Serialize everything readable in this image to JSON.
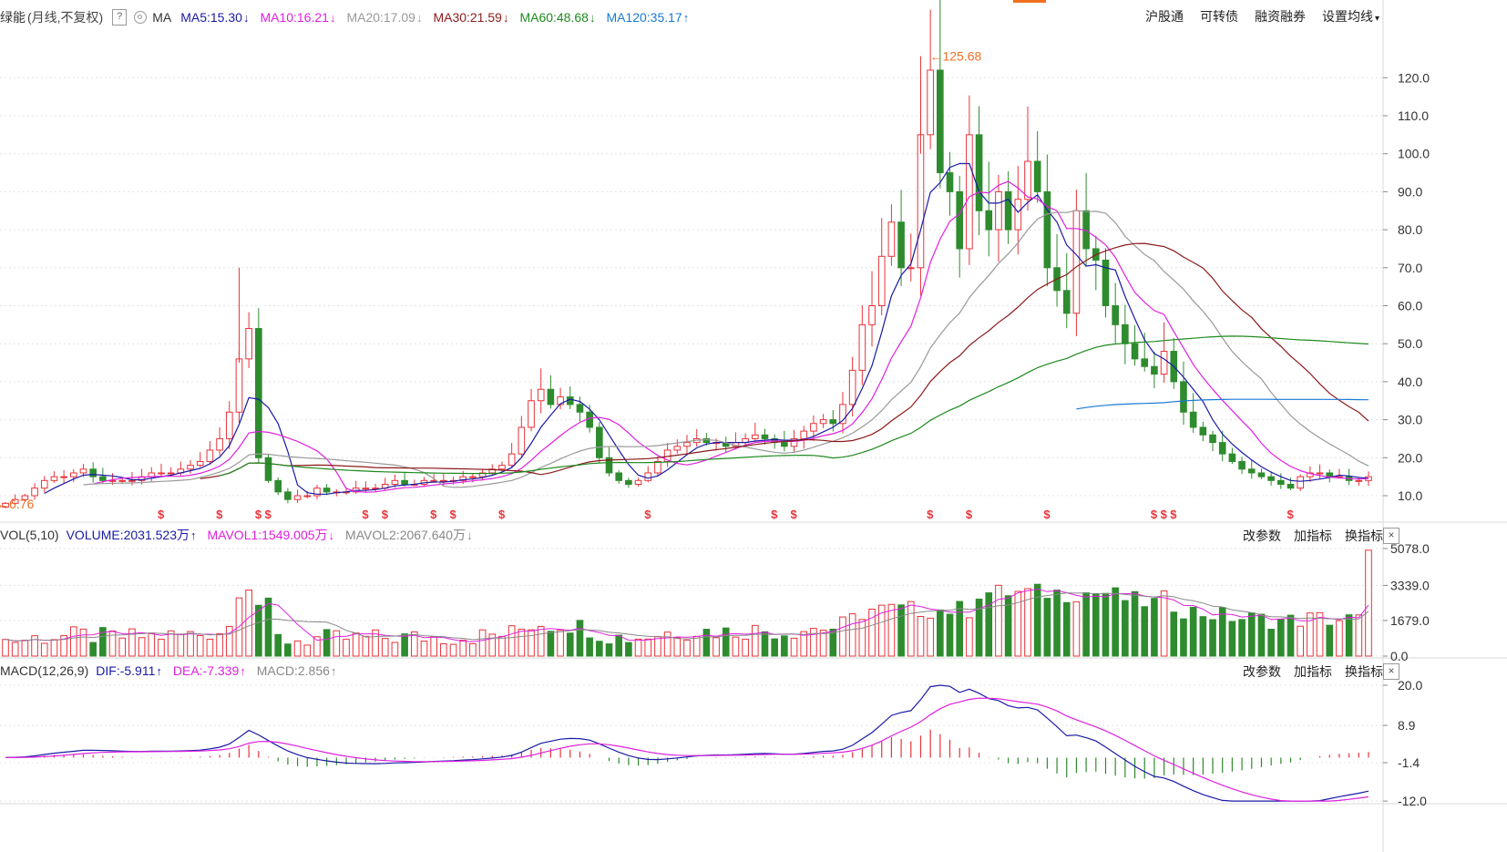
{
  "header": {
    "name_partial": "绿能",
    "mode": "(月线,不复权)",
    "help": "?",
    "ma_label": "MA",
    "ma5": {
      "text": "MA5:15.30",
      "arrow": "↓",
      "color": "#1a1aa6"
    },
    "ma10": {
      "text": "MA10:16.21",
      "arrow": "↓",
      "color": "#e020e0"
    },
    "ma20": {
      "text": "MA20:17.09",
      "arrow": "↓",
      "color": "#999999"
    },
    "ma30": {
      "text": "MA30:21.59",
      "arrow": "↓",
      "color": "#8b1a1a"
    },
    "ma60": {
      "text": "MA60:48.68",
      "arrow": "↓",
      "color": "#1f8a1f"
    },
    "ma120": {
      "text": "MA120:35.17",
      "arrow": "↑",
      "color": "#1a7ad6"
    }
  },
  "top_menu": [
    "沪股通",
    "可转债",
    "融资融券",
    "设置均线"
  ],
  "top_menu_caret": "▾",
  "price_axis_labels": [
    "120.0",
    "110.0",
    "100.0",
    "90.0",
    "80.0",
    "70.0",
    "60.0",
    "50.0",
    "40.0",
    "30.0",
    "20.0",
    "10.0"
  ],
  "high_marker": "←125.68",
  "low_marker": "←6.76",
  "dividend_mark": "$",
  "vol_header": {
    "name": "VOL(5,10)",
    "volume": {
      "text": "VOLUME:2031.523万",
      "arrow": "↑",
      "color": "#1a1aa6"
    },
    "mavol1": {
      "text": "MAVOL1:1549.005万",
      "arrow": "↓",
      "color": "#e020e0"
    },
    "mavol2": {
      "text": "MAVOL2:2067.640万",
      "arrow": "↓",
      "color": "#888888"
    }
  },
  "vol_axis_labels": [
    "5078.0",
    "3339.0",
    "1679.0",
    "0.0"
  ],
  "macd_header": {
    "name": "MACD(12,26,9)",
    "dif": {
      "text": "DIF:-5.911",
      "arrow": "↑",
      "color": "#1a1aa6"
    },
    "dea": {
      "text": "DEA:-7.339",
      "arrow": "↑",
      "color": "#e020e0"
    },
    "macd": {
      "text": "MACD:2.856",
      "arrow": "↑",
      "color": "#888888"
    }
  },
  "macd_axis_labels": [
    "20.0",
    "8.9",
    "-1.4",
    "-12.0"
  ],
  "panel_tools": [
    "改参数",
    "加指标",
    "换指标"
  ],
  "close_label": "×",
  "colors": {
    "up": "#e8333a",
    "down": "#2e8b2e",
    "ma5": "#1a1aa6",
    "ma10": "#e020e0",
    "ma20": "#999999",
    "ma30": "#8b1a1a",
    "ma60": "#1f8a1f",
    "ma120": "#1a7ad6",
    "accent": "#f07020"
  },
  "chart_data": {
    "type": "candlestick",
    "period": "monthly",
    "price_range": [
      6.76,
      125.68
    ],
    "candles_close_approx": [
      8,
      9,
      10,
      12,
      14,
      15,
      15,
      16,
      17,
      15,
      14,
      14,
      14,
      14,
      15,
      16,
      16,
      16,
      17,
      18,
      19,
      22,
      25,
      32,
      46,
      54,
      20,
      14,
      11,
      9,
      10,
      10,
      12,
      11,
      11,
      11,
      12,
      12,
      12,
      13,
      14,
      13,
      13,
      14,
      14,
      14,
      14,
      15,
      15,
      16,
      17,
      18,
      21,
      28,
      35,
      38,
      34,
      36,
      34,
      32,
      28,
      20,
      16,
      14,
      13,
      14,
      16,
      19,
      22,
      23,
      24,
      25,
      24,
      24,
      23,
      24,
      25,
      26,
      25,
      24,
      23,
      25,
      27,
      29,
      30,
      29,
      34,
      43,
      55,
      60,
      73,
      82,
      70,
      70,
      105,
      122,
      95,
      90,
      75,
      105,
      85,
      80,
      90,
      80,
      88,
      98,
      90,
      70,
      64,
      58,
      85,
      75,
      72,
      60,
      55,
      50,
      46,
      44,
      42,
      48,
      40,
      32,
      28,
      26,
      24,
      21,
      19,
      17,
      16,
      15,
      14,
      13,
      12,
      15,
      16,
      16,
      15,
      15,
      14,
      14,
      15
    ]
  }
}
